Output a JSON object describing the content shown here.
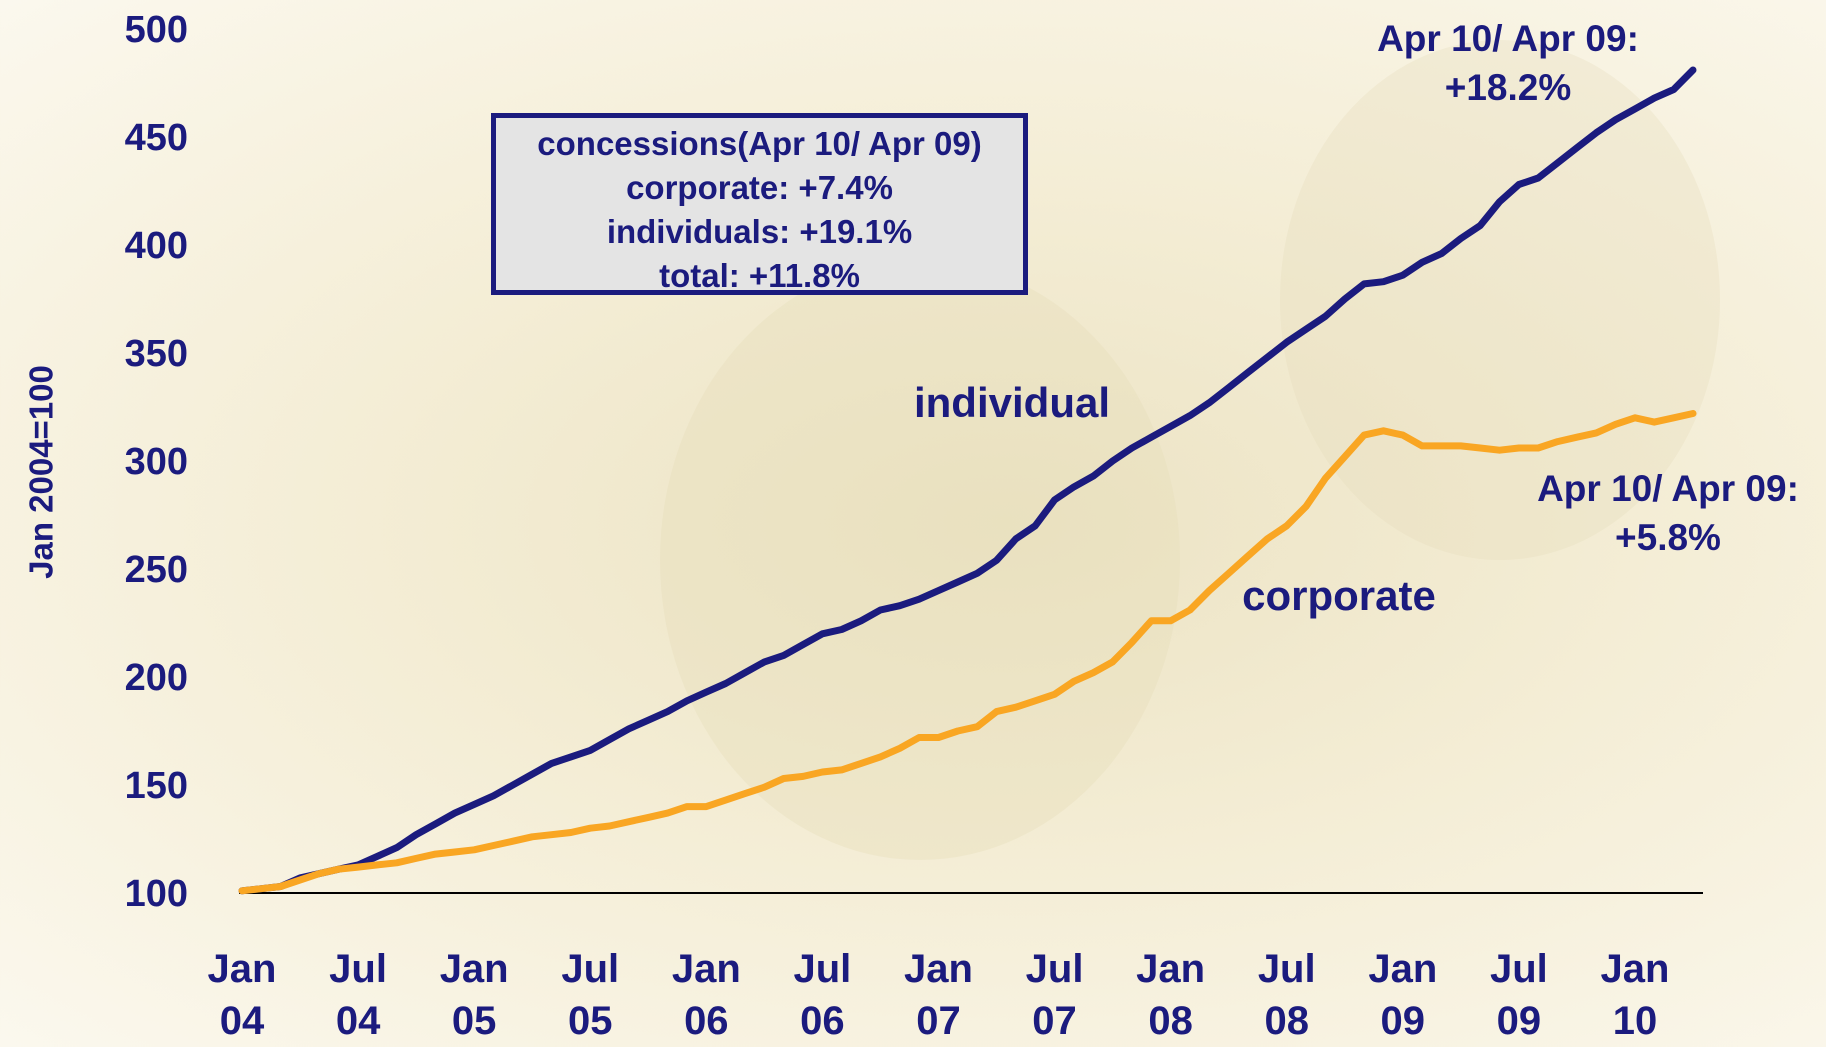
{
  "chart_data": {
    "type": "line",
    "y_label": "Jan 2004=100",
    "categories": [
      "Jan 04",
      null,
      null,
      null,
      null,
      null,
      "Jul 04",
      null,
      null,
      null,
      null,
      null,
      "Jan 05",
      null,
      null,
      null,
      null,
      null,
      "Jul 05",
      null,
      null,
      null,
      null,
      null,
      "Jan 06",
      null,
      null,
      null,
      null,
      null,
      "Jul 06",
      null,
      null,
      null,
      null,
      null,
      "Jan 07",
      null,
      null,
      null,
      null,
      null,
      "Jul 07",
      null,
      null,
      null,
      null,
      null,
      "Jan 08",
      null,
      null,
      null,
      null,
      null,
      "Jul 08",
      null,
      null,
      null,
      null,
      null,
      "Jan 09",
      null,
      null,
      null,
      null,
      null,
      "Jul 09",
      null,
      null,
      null,
      null,
      null,
      "Jan 10",
      null,
      null,
      null
    ],
    "series": [
      {
        "name": "individual",
        "color": "#1b1b7e",
        "values": [
          101,
          102,
          103,
          107,
          109,
          111,
          113,
          117,
          121,
          127,
          132,
          137,
          141,
          145,
          150,
          155,
          160,
          163,
          166,
          171,
          176,
          180,
          184,
          189,
          193,
          197,
          202,
          207,
          210,
          215,
          220,
          222,
          226,
          231,
          233,
          236,
          240,
          244,
          248,
          254,
          264,
          270,
          282,
          288,
          293,
          300,
          306,
          311,
          316,
          321,
          327,
          334,
          341,
          348,
          355,
          361,
          367,
          375,
          382,
          383,
          386,
          392,
          396,
          403,
          409,
          420,
          428,
          431,
          438,
          445,
          452,
          458,
          463,
          468,
          472,
          481
        ]
      },
      {
        "name": "corporate",
        "color": "#f9a623",
        "values": [
          101,
          102,
          103,
          106,
          109,
          111,
          112,
          113,
          114,
          116,
          118,
          119,
          120,
          122,
          124,
          126,
          127,
          128,
          130,
          131,
          133,
          135,
          137,
          140,
          140,
          143,
          146,
          149,
          153,
          154,
          156,
          157,
          160,
          163,
          167,
          172,
          172,
          175,
          177,
          184,
          186,
          189,
          192,
          198,
          202,
          207,
          216,
          226,
          226,
          231,
          240,
          248,
          256,
          264,
          270,
          279,
          292,
          302,
          312,
          314,
          312,
          307,
          307,
          307,
          306,
          305,
          306,
          306,
          309,
          311,
          313,
          317,
          320,
          318,
          320,
          322
        ]
      }
    ],
    "ylim": [
      100,
      500
    ],
    "yticks": [
      100,
      150,
      200,
      250,
      300,
      350,
      400,
      450,
      500
    ],
    "annotations": [
      [
        "Apr 10/ Apr 09:",
        "+18.2%"
      ],
      [
        "Apr 10/ Apr 09:",
        "+5.8%"
      ]
    ],
    "text_box": [
      "concessions(Apr 10/ Apr 09)",
      "corporate: +7.4%",
      "individuals: +19.1%",
      "total: +11.8%"
    ]
  }
}
